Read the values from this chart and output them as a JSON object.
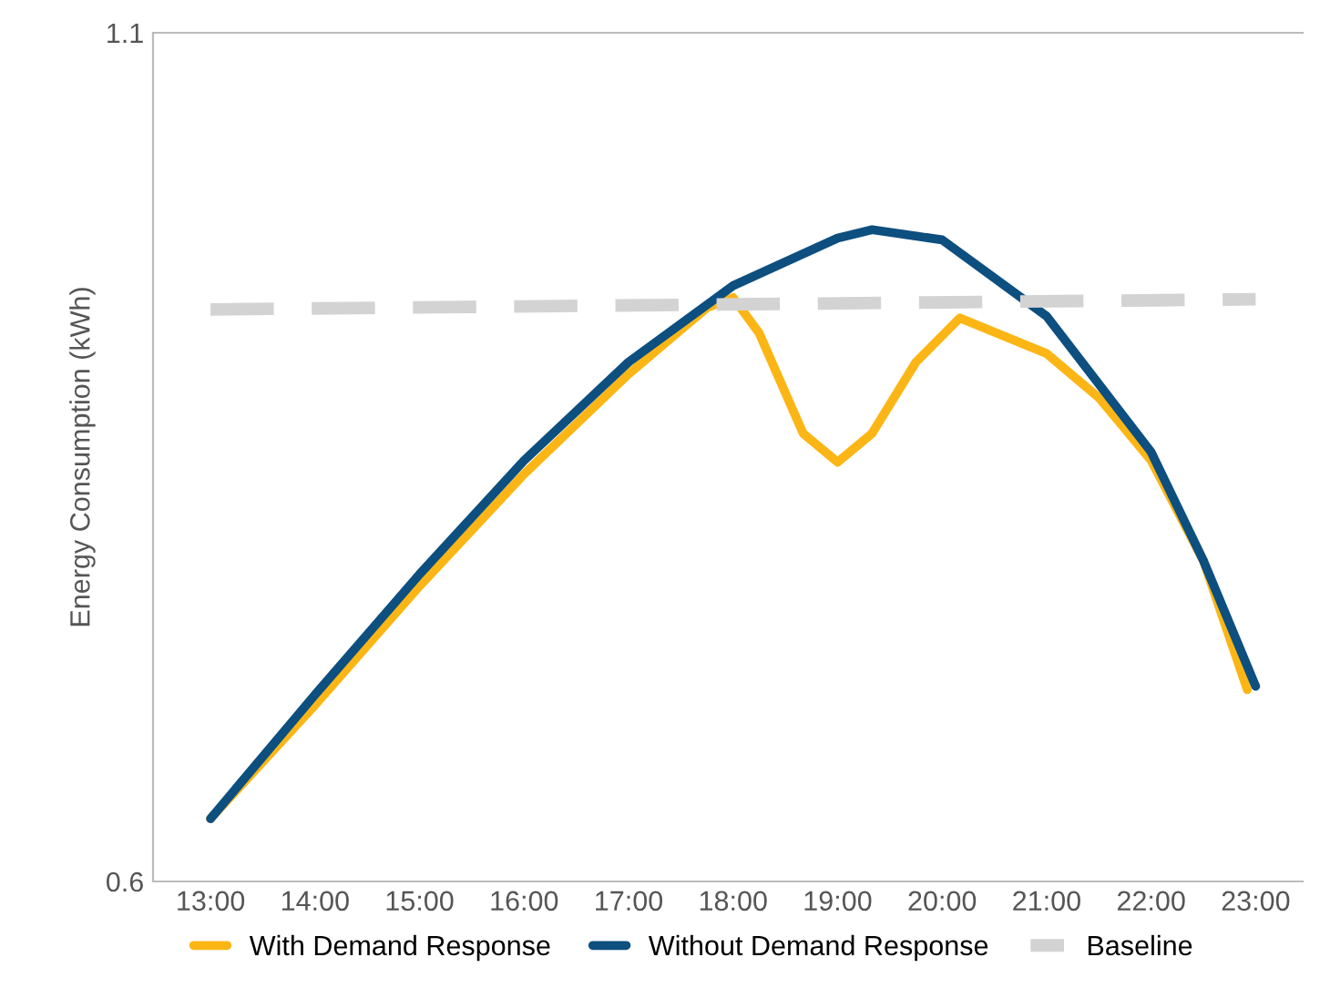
{
  "chart_data": {
    "type": "line",
    "ylabel": "Energy Consumption (kWh)",
    "xlim": [
      12.45,
      23.45
    ],
    "ylim": [
      0.6,
      1.1
    ],
    "yticks": [
      0.6,
      1.1
    ],
    "xticks": [
      {
        "value": 13,
        "label": "13:00"
      },
      {
        "value": 14,
        "label": "14:00"
      },
      {
        "value": 15,
        "label": "15:00"
      },
      {
        "value": 16,
        "label": "16:00"
      },
      {
        "value": 17,
        "label": "17:00"
      },
      {
        "value": 18,
        "label": "18:00"
      },
      {
        "value": 19,
        "label": "19:00"
      },
      {
        "value": 20,
        "label": "20:00"
      },
      {
        "value": 21,
        "label": "21:00"
      },
      {
        "value": 22,
        "label": "22:00"
      },
      {
        "value": 23,
        "label": "23:00"
      }
    ],
    "grid": false,
    "legend": "bottom",
    "marker": "none",
    "series": [
      {
        "name": "With Demand Response",
        "color": "#fbb616",
        "line_style": "solid",
        "x": [
          13,
          14,
          15,
          16,
          17,
          17.75,
          18,
          18.25,
          18.67,
          19,
          19.33,
          19.75,
          20.17,
          21,
          21.5,
          22,
          22.5,
          22.92
        ],
        "values": [
          0.637,
          0.704,
          0.774,
          0.84,
          0.899,
          0.938,
          0.944,
          0.923,
          0.864,
          0.847,
          0.864,
          0.906,
          0.932,
          0.911,
          0.885,
          0.848,
          0.789,
          0.713
        ]
      },
      {
        "name": "Without Demand Response",
        "color": "#0d4f7f",
        "line_style": "solid",
        "x": [
          13,
          14,
          15,
          16,
          17,
          18,
          19,
          19.33,
          20,
          21,
          22,
          22.5,
          23
        ],
        "values": [
          0.637,
          0.71,
          0.781,
          0.848,
          0.906,
          0.951,
          0.979,
          0.984,
          0.978,
          0.933,
          0.853,
          0.789,
          0.715
        ]
      },
      {
        "name": "Baseline",
        "color": "#d3d3d3",
        "line_style": "dashed",
        "x": [
          13,
          23
        ],
        "values": [
          0.937,
          0.943
        ]
      }
    ]
  }
}
